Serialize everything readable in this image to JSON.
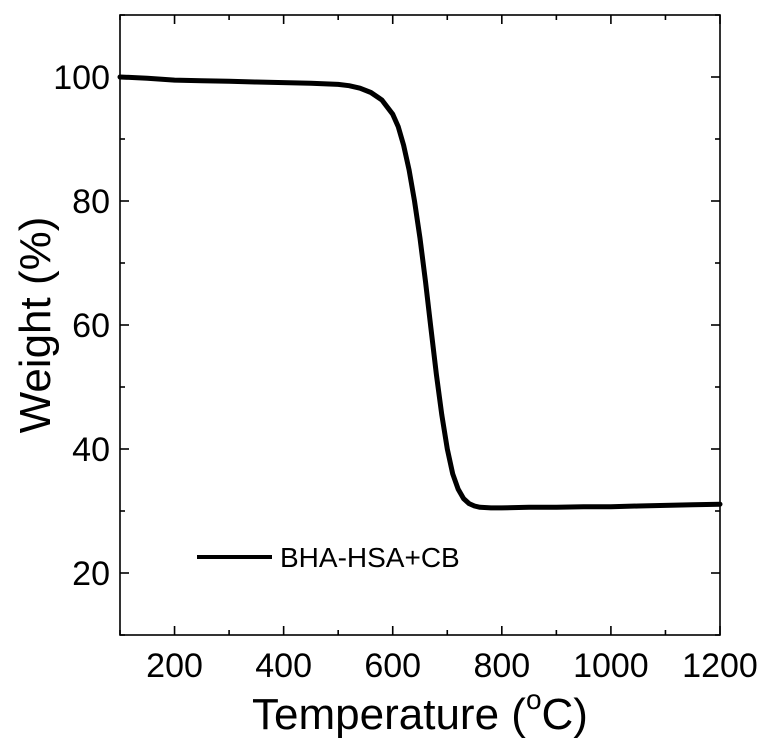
{
  "chart_data": {
    "type": "line",
    "title": "",
    "xlabel": "Temperature (",
    "xlabel_sup": "o",
    "xlabel_tail": "C)",
    "ylabel": "Weight (%)",
    "xlim": [
      100,
      1200
    ],
    "ylim": [
      10,
      110
    ],
    "xticks": [
      200,
      400,
      600,
      800,
      1000,
      1200
    ],
    "yticks": [
      20,
      40,
      60,
      80,
      100
    ],
    "grid": false,
    "legend": {
      "position": "bottom-left"
    },
    "series": [
      {
        "name": "BHA-HSA+CB",
        "color": "#000000",
        "x": [
          100,
          150,
          200,
          250,
          300,
          350,
          400,
          450,
          500,
          520,
          540,
          560,
          580,
          600,
          610,
          620,
          630,
          640,
          650,
          660,
          670,
          680,
          690,
          700,
          710,
          720,
          730,
          740,
          750,
          760,
          780,
          800,
          850,
          900,
          950,
          1000,
          1050,
          1100,
          1150,
          1200
        ],
        "y": [
          100,
          99.8,
          99.5,
          99.4,
          99.3,
          99.2,
          99.1,
          99.0,
          98.8,
          98.6,
          98.2,
          97.5,
          96.3,
          94.0,
          92.0,
          89.0,
          85.0,
          80.0,
          74.0,
          67.0,
          59.5,
          52.0,
          45.5,
          40.0,
          36.0,
          33.5,
          32.0,
          31.2,
          30.8,
          30.6,
          30.5,
          30.5,
          30.6,
          30.6,
          30.7,
          30.7,
          30.8,
          30.9,
          31.0,
          31.1
        ]
      }
    ]
  }
}
